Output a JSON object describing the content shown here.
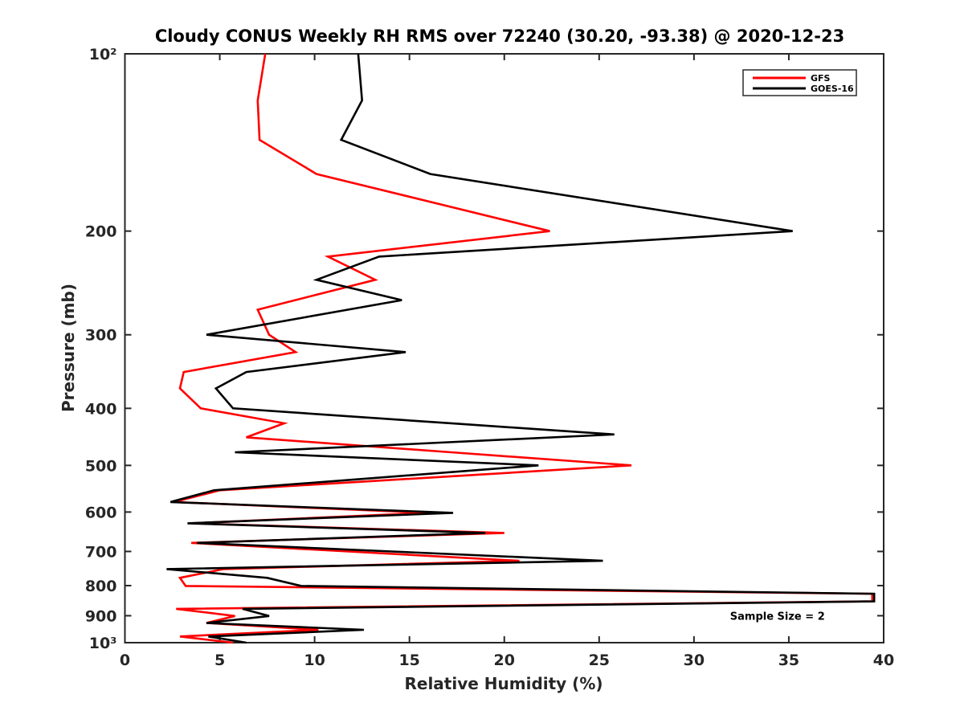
{
  "title": "Cloudy CONUS Weekly RH RMS over 72240 (30.20, -93.38) @ 2020-12-23",
  "legend": {
    "entries": [
      {
        "label": "GFS",
        "color": "#ff0000"
      },
      {
        "label": "GOES-16",
        "color": "#000000"
      }
    ]
  },
  "chart_data": {
    "type": "line",
    "title": "Cloudy CONUS Weekly RH RMS over 72240 (30.20, -93.38) @ 2020-12-23",
    "xlabel": "Relative Humidity (%)",
    "ylabel": "Pressure (mb)",
    "xlim": [
      0,
      40
    ],
    "x_ticks": [
      0,
      5,
      10,
      15,
      20,
      25,
      30,
      35,
      40
    ],
    "x_tick_labels": [
      "0",
      "5",
      "10",
      "15",
      "20",
      "25",
      "30",
      "35",
      "40"
    ],
    "ylim": [
      100,
      1000
    ],
    "y_scale": "log",
    "y_axis_direction": "reversed (pressure increases downward)",
    "y_ticks": [
      100,
      200,
      300,
      400,
      500,
      600,
      700,
      800,
      900,
      1000
    ],
    "y_tick_labels": [
      "10²",
      "200",
      "300",
      "400",
      "500",
      "600",
      "700",
      "800",
      "900",
      "10³"
    ],
    "grid": false,
    "legend_position": "top-right inside plot",
    "annotation": {
      "text": "Sample Size = 2",
      "x": 34.4,
      "y": 900
    },
    "series": [
      {
        "name": "GFS",
        "color": "#ff0000",
        "points": [
          [
            100,
            7.4
          ],
          [
            120,
            7.0
          ],
          [
            140,
            7.1
          ],
          [
            160,
            10.1
          ],
          [
            200,
            22.4
          ],
          [
            221,
            10.7
          ],
          [
            242,
            13.2
          ],
          [
            272,
            7.0
          ],
          [
            300,
            7.6
          ],
          [
            321,
            9.0
          ],
          [
            347,
            3.1
          ],
          [
            370,
            2.9
          ],
          [
            400,
            4.0
          ],
          [
            424,
            8.4
          ],
          [
            448,
            6.4
          ],
          [
            475,
            17.2
          ],
          [
            500,
            26.7
          ],
          [
            525,
            15.8
          ],
          [
            551,
            5.0
          ],
          [
            577,
            2.6
          ],
          [
            602,
            16.0
          ],
          [
            627,
            3.5
          ],
          [
            651,
            20.0
          ],
          [
            677,
            3.5
          ],
          [
            700,
            11.8
          ],
          [
            726,
            20.8
          ],
          [
            750,
            5.2
          ],
          [
            776,
            2.9
          ],
          [
            801,
            3.2
          ],
          [
            826,
            39.4
          ],
          [
            851,
            39.4
          ],
          [
            876,
            2.7
          ],
          [
            901,
            5.8
          ],
          [
            926,
            4.3
          ],
          [
            951,
            10.2
          ],
          [
            976,
            2.9
          ],
          [
            1000,
            5.7
          ]
        ]
      },
      {
        "name": "GOES-16",
        "color": "#000000",
        "points": [
          [
            100,
            12.3
          ],
          [
            120,
            12.5
          ],
          [
            140,
            11.4
          ],
          [
            160,
            16.1
          ],
          [
            200,
            35.2
          ],
          [
            221,
            13.4
          ],
          [
            242,
            10.1
          ],
          [
            262,
            14.6
          ],
          [
            300,
            4.3
          ],
          [
            321,
            14.8
          ],
          [
            347,
            6.4
          ],
          [
            370,
            4.8
          ],
          [
            400,
            5.7
          ],
          [
            425,
            17.6
          ],
          [
            443,
            25.8
          ],
          [
            475,
            5.8
          ],
          [
            500,
            21.8
          ],
          [
            525,
            13.2
          ],
          [
            551,
            4.7
          ],
          [
            577,
            2.4
          ],
          [
            602,
            17.3
          ],
          [
            627,
            3.3
          ],
          [
            651,
            19.0
          ],
          [
            677,
            3.8
          ],
          [
            700,
            14.1
          ],
          [
            726,
            25.2
          ],
          [
            750,
            2.2
          ],
          [
            776,
            7.5
          ],
          [
            801,
            9.3
          ],
          [
            826,
            39.5
          ],
          [
            851,
            39.5
          ],
          [
            876,
            6.2
          ],
          [
            901,
            7.6
          ],
          [
            926,
            4.3
          ],
          [
            951,
            12.6
          ],
          [
            976,
            4.4
          ],
          [
            1000,
            6.4
          ]
        ]
      }
    ]
  },
  "colors": {
    "axis": "#262626",
    "background": "#ffffff"
  }
}
